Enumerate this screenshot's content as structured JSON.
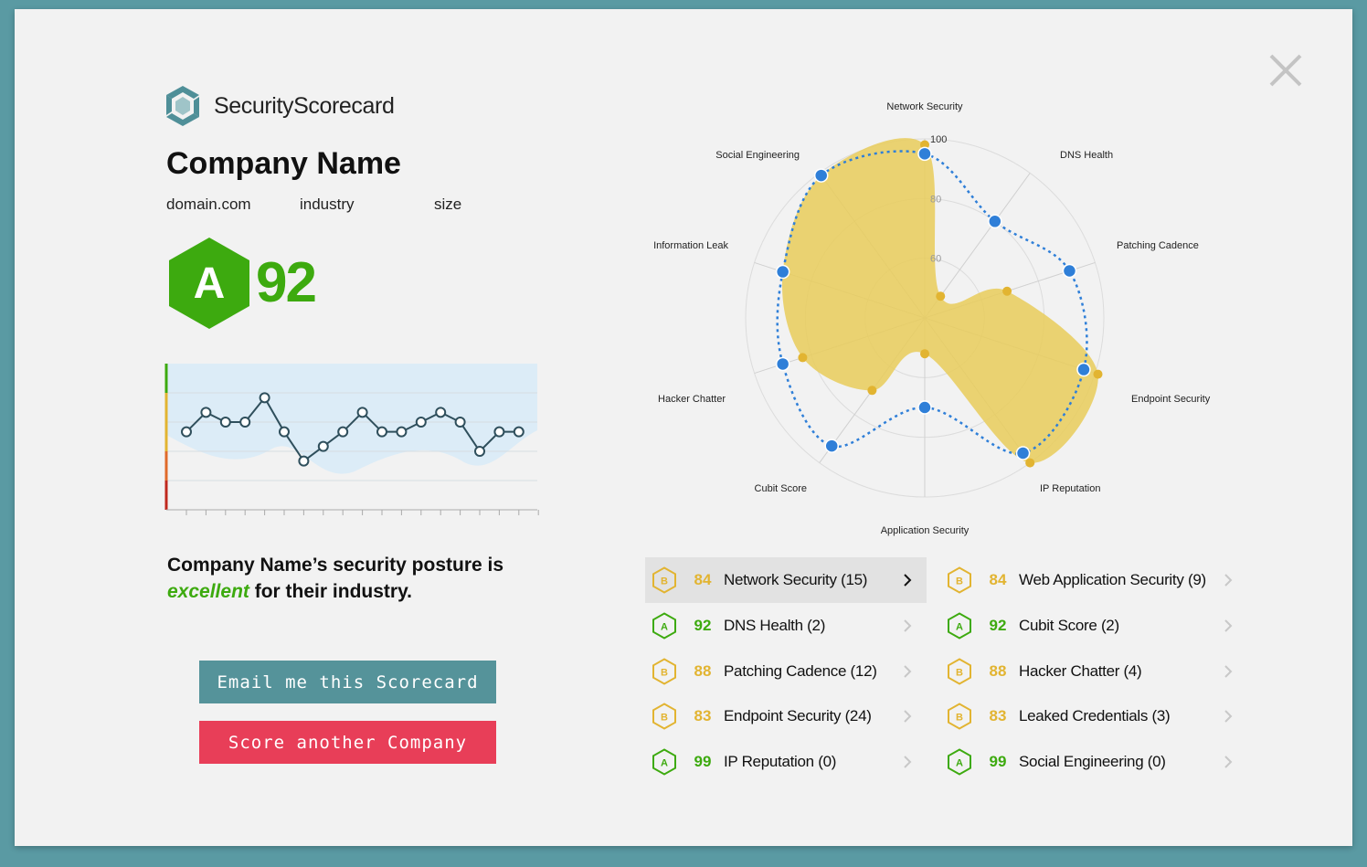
{
  "brand": {
    "name": "SecurityScorecard",
    "logo_icon": "scorecard-logo-icon"
  },
  "company": {
    "name": "Company Name",
    "domain": "domain.com",
    "industry": "industry",
    "size": "size"
  },
  "overall": {
    "grade": "A",
    "score": "92",
    "color": "#3daa0f"
  },
  "history": {
    "values": [
      72,
      80,
      76,
      76,
      86,
      72,
      60,
      66,
      72,
      80,
      72,
      72,
      76,
      80,
      76,
      64,
      72,
      72
    ]
  },
  "posture": {
    "prefix": "Company Name’s security posture is",
    "highlight": "excellent",
    "suffix": "for their industry."
  },
  "buttons": {
    "email": "Email me this Scorecard",
    "score_another": "Score another Company"
  },
  "chart_data": {
    "type": "radar",
    "axes": [
      "Network Security",
      "DNS Health",
      "Patching Cadence",
      "Endpoint Security",
      "IP Reputation",
      "Application Security",
      "Cubit Score",
      "Hacker Chatter",
      "Information Leak",
      "Social Engineering"
    ],
    "tick_labels": [
      "60",
      "80",
      "100"
    ],
    "series": [
      {
        "values": [
          98,
          49,
          69,
          101,
          100,
          52,
          70,
          83,
          90,
          99
        ],
        "color": "#e9cc5a"
      },
      {
        "values": [
          95,
          80,
          91,
          96,
          96,
          70,
          93,
          90,
          90,
          99
        ],
        "color": "#2f7fd8"
      }
    ]
  },
  "categories": [
    {
      "grade": "B",
      "score": "84",
      "label": "Network Security (15)",
      "active": true
    },
    {
      "grade": "A",
      "score": "92",
      "label": "DNS Health (2)"
    },
    {
      "grade": "B",
      "score": "88",
      "label": "Patching Cadence (12)"
    },
    {
      "grade": "B",
      "score": "83",
      "label": "Endpoint Security (24)"
    },
    {
      "grade": "A",
      "score": "99",
      "label": "IP Reputation (0)"
    },
    {
      "grade": "B",
      "score": "84",
      "label": "Web Application Security (9)"
    },
    {
      "grade": "A",
      "score": "92",
      "label": "Cubit Score (2)"
    },
    {
      "grade": "B",
      "score": "88",
      "label": "Hacker Chatter (4)"
    },
    {
      "grade": "B",
      "score": "83",
      "label": "Leaked Credentials (3)"
    },
    {
      "grade": "A",
      "score": "99",
      "label": "Social Engineering (0)"
    }
  ],
  "colors": {
    "grade_a": "#3daa0f",
    "grade_b": "#e2b431",
    "teal": "#55939a",
    "red": "#e83e58"
  }
}
